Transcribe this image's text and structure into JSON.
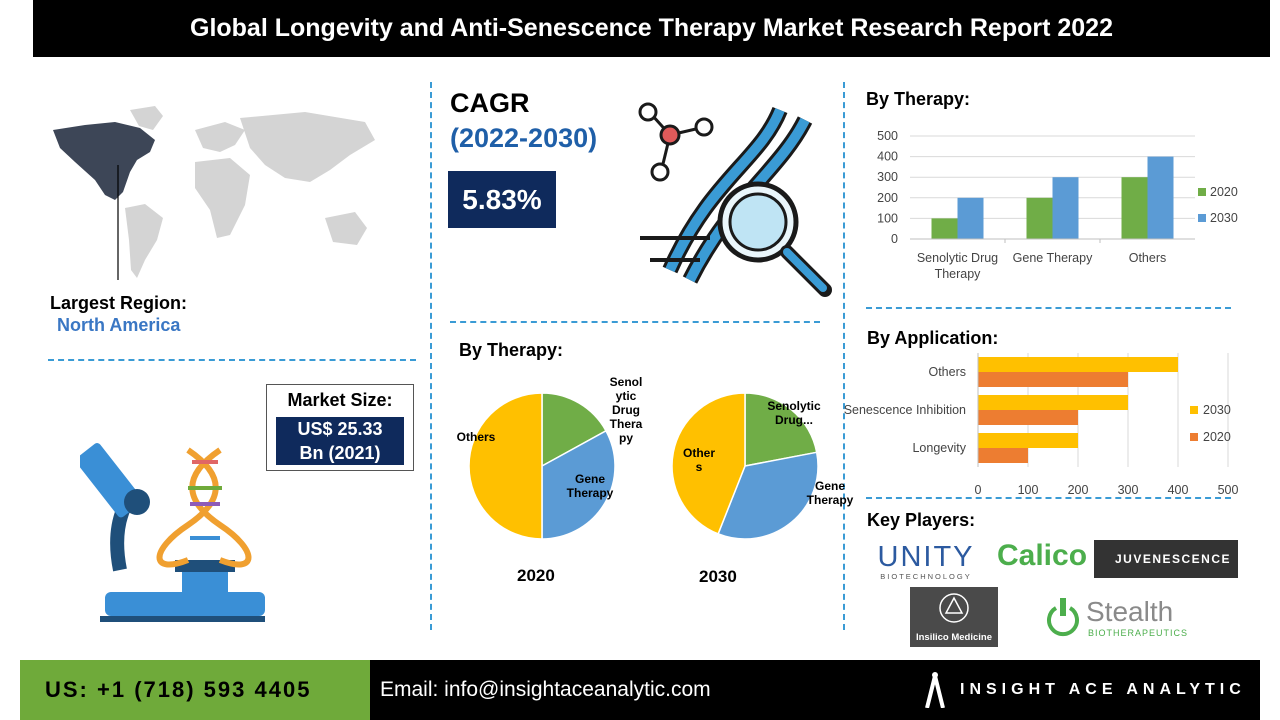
{
  "header": {
    "title": "Global Longevity and Anti-Senescence Therapy Market Research Report 2022"
  },
  "region": {
    "label": "Largest Region:",
    "name": "North America"
  },
  "cagr": {
    "label": "CAGR",
    "years": "(2022-2030)",
    "value": "5.83%"
  },
  "market_size": {
    "label": "Market Size:",
    "value_line1": "US$ 25.33",
    "value_line2": "Bn (2021)"
  },
  "pie_section": {
    "heading": "By Therapy:",
    "year_2020": "2020",
    "year_2030": "2030"
  },
  "bar_section": {
    "heading": "By Therapy:"
  },
  "hbar_section": {
    "heading": "By Application:"
  },
  "players": {
    "heading": "Key Players:",
    "unity": "UNITY",
    "unity_sub": "BIOTECHNOLOGY",
    "calico": "Calico",
    "juvenescence": "JUVENESCENCE",
    "insilico": "Insilico Medicine",
    "stealth": "Stealth",
    "stealth_sub": "BIOTHERAPEUTICS"
  },
  "footer": {
    "phone": "US: +1 (718) 593 4405",
    "email": "Email: info@insightaceanalytic.com",
    "brand": "INSIGHT ACE ANALYTIC"
  },
  "colors": {
    "green": "#70ad47",
    "blue": "#5b9bd5",
    "yellow": "#ffc000",
    "orange": "#ed7d31",
    "navy": "#0f2a5c"
  },
  "chart_data": [
    {
      "type": "bar",
      "title": "By Therapy:",
      "categories": [
        "Senolytic Drug Therapy",
        "Gene Therapy",
        "Others"
      ],
      "category_lines": [
        [
          "Senolytic Drug",
          "Therapy"
        ],
        [
          "Gene Therapy"
        ],
        [
          "Others"
        ]
      ],
      "series": [
        {
          "name": "2020",
          "values": [
            100,
            200,
            300
          ],
          "color": "#70ad47"
        },
        {
          "name": "2030",
          "values": [
            200,
            300,
            400
          ],
          "color": "#5b9bd5"
        }
      ],
      "ylim": [
        0,
        500
      ],
      "yticks": [
        0,
        100,
        200,
        300,
        400,
        500
      ],
      "grid": true,
      "legend": "right"
    },
    {
      "type": "bar",
      "orientation": "horizontal",
      "title": "By Application:",
      "categories": [
        "Others",
        "Senescence Inhibition",
        "Longevity"
      ],
      "series": [
        {
          "name": "2030",
          "values": [
            400,
            300,
            200
          ],
          "color": "#ffc000"
        },
        {
          "name": "2020",
          "values": [
            300,
            200,
            100
          ],
          "color": "#ed7d31"
        }
      ],
      "xlim": [
        0,
        500
      ],
      "xticks": [
        0,
        100,
        200,
        300,
        400,
        500
      ],
      "grid": true,
      "legend": "right"
    },
    {
      "type": "pie",
      "title": "2020",
      "slices": [
        {
          "label": "Senolytic Drug Therapy",
          "label_lines": [
            "Senol",
            "ytic",
            "Drug",
            "Thera",
            "py"
          ],
          "value": 17,
          "color": "#70ad47"
        },
        {
          "label": "Gene Therapy",
          "label_lines": [
            "Gene",
            "Therapy"
          ],
          "value": 33,
          "color": "#5b9bd5"
        },
        {
          "label": "Others",
          "label_lines": [
            "Others"
          ],
          "value": 50,
          "color": "#ffc000"
        }
      ]
    },
    {
      "type": "pie",
      "title": "2030",
      "slices": [
        {
          "label": "Senolytic Drug...",
          "label_lines": [
            "Senolytic",
            "Drug..."
          ],
          "value": 22,
          "color": "#70ad47"
        },
        {
          "label": "Gene Therapy",
          "label_lines": [
            "Gene",
            "Therapy"
          ],
          "value": 34,
          "color": "#5b9bd5"
        },
        {
          "label": "Others",
          "label_lines": [
            "Other",
            "s"
          ],
          "value": 44,
          "color": "#ffc000"
        }
      ]
    }
  ]
}
